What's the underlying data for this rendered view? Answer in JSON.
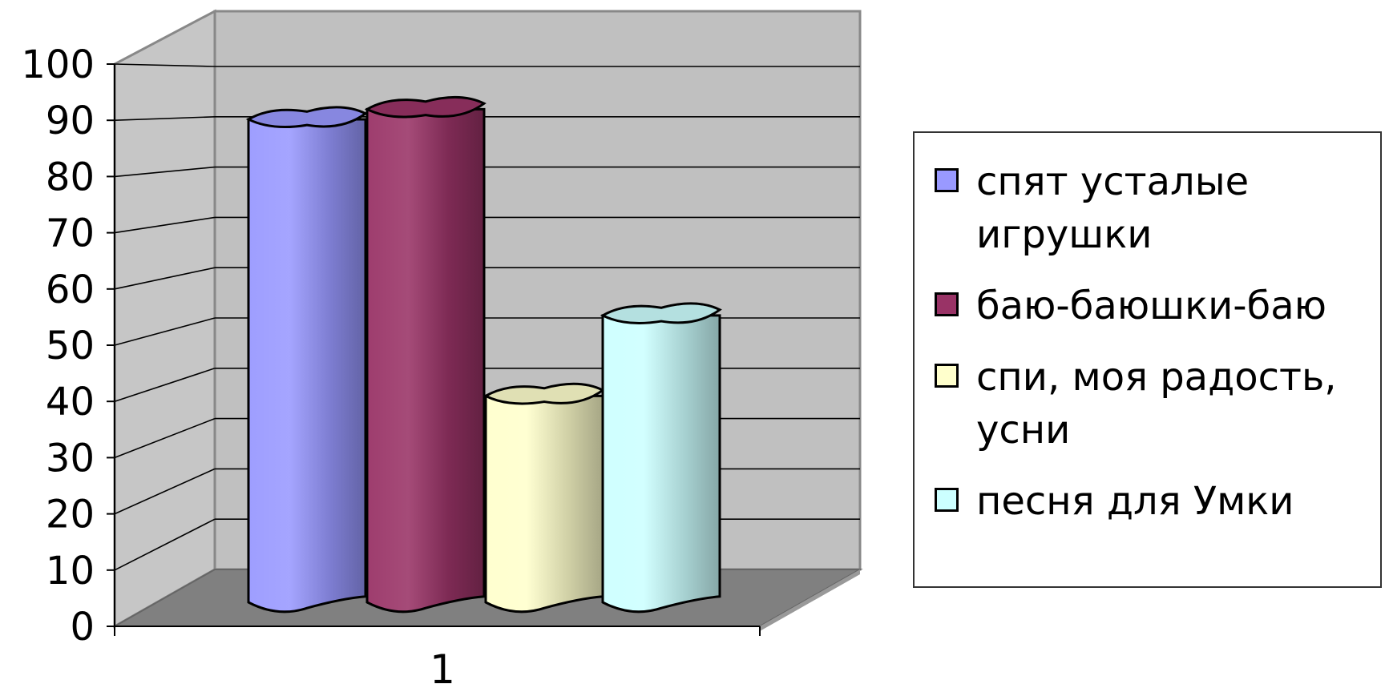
{
  "chart_data": {
    "type": "bar",
    "style": "3d-cylinder",
    "categories": [
      "1"
    ],
    "series": [
      {
        "name": "спят усталые игрушки",
        "values": [
          93
        ],
        "color": "#9999ff"
      },
      {
        "name": "баю-баюшки-баю",
        "values": [
          95
        ],
        "color": "#993366"
      },
      {
        "name": "спи, моя радость, усни",
        "values": [
          38
        ],
        "color": "#ffffcc"
      },
      {
        "name": "песня для Умки",
        "values": [
          54
        ],
        "color": "#ccffff"
      }
    ],
    "yticks": [
      "0",
      "10",
      "20",
      "30",
      "40",
      "50",
      "60",
      "70",
      "80",
      "90",
      "100"
    ],
    "ylim": [
      0,
      100
    ],
    "grid": true,
    "legend_position": "right",
    "colors": {
      "back_wall": "#c0c0c0",
      "side_wall": "#c6c6c6",
      "floor": "#808080"
    }
  }
}
